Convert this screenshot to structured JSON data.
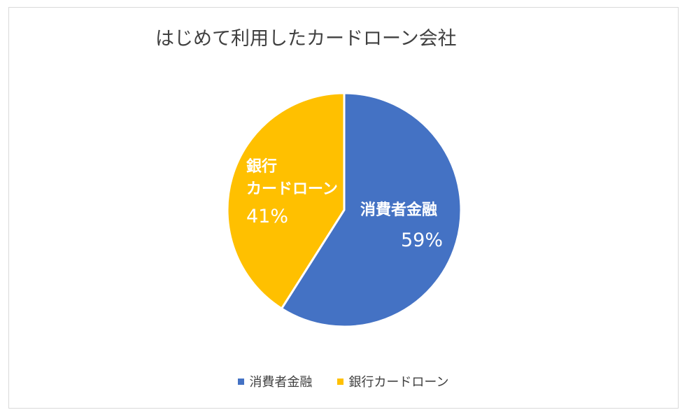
{
  "chart_data": {
    "type": "pie",
    "title": "はじめて利用したカードローン会社",
    "slices": [
      {
        "name": "消費者金融",
        "value": 59,
        "percent_label": "59%",
        "color": "#4472C4",
        "label_lines": [
          "消費者金融"
        ]
      },
      {
        "name": "銀行カードローン",
        "value": 41,
        "percent_label": "41%",
        "color": "#FFC000",
        "label_lines": [
          "銀行",
          "カードローン"
        ]
      }
    ],
    "legend": {
      "placement": "bottom",
      "entries": [
        "消費者金融",
        "銀行カードローン"
      ]
    }
  }
}
